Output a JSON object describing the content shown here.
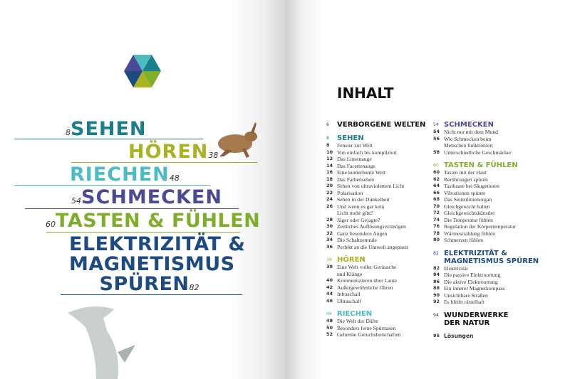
{
  "left_page": {
    "chapters": [
      {
        "title": "SEHEN",
        "page": "8",
        "color": "#1b7f8b"
      },
      {
        "title": "HÖREN",
        "page": "38",
        "color": "#a9b321"
      },
      {
        "title": "RIECHEN",
        "page": "48",
        "color": "#4bbcc2"
      },
      {
        "title": "SCHMECKEN",
        "page": "54",
        "color": "#4b4b93"
      },
      {
        "title": "TASTEN & FÜHLEN",
        "page": "60",
        "color": "#7fae2b"
      },
      {
        "title_lines": [
          "ELEKTRIZITÄT &",
          "MAGNETISMUS",
          "SPÜREN"
        ],
        "page": "82",
        "color": "#1d4a80"
      }
    ]
  },
  "toc": {
    "title": "INHALT",
    "col1": [
      {
        "type": "h",
        "num": "6",
        "text": "VERBORGENE WELTEN",
        "color": "#111"
      },
      {
        "type": "h",
        "num": "8",
        "text": "SEHEN",
        "color": "#1b7f8b"
      },
      {
        "num": "8",
        "text": "Fenster zur Welt"
      },
      {
        "num": "10",
        "text": "Von einfach bis kompliziert"
      },
      {
        "num": "12",
        "text": "Das Linsenauge"
      },
      {
        "num": "14",
        "text": "Das Facettenauge"
      },
      {
        "num": "16",
        "text": "Eine kunterbunte Welt"
      },
      {
        "num": "18",
        "text": "Das Farbensehen"
      },
      {
        "num": "20",
        "text": "Sehen von ultraviolettem Licht"
      },
      {
        "num": "22",
        "text": "Polarisation"
      },
      {
        "num": "24",
        "text": "Sehen in der Dunkelheit"
      },
      {
        "num": "26",
        "text": "Und wenn es gar kein"
      },
      {
        "num": "",
        "text": "Licht mehr gibt?"
      },
      {
        "num": "28",
        "text": "Jäger oder Gejagte?"
      },
      {
        "num": "30",
        "text": "Zeitliches Auflösungsvermögen"
      },
      {
        "num": "32",
        "text": "Ganz besondere Augen"
      },
      {
        "num": "34",
        "text": "Die Schaltzentrale"
      },
      {
        "num": "36",
        "text": "Perfekt an die Umwelt angepasst"
      },
      {
        "type": "h",
        "num": "38",
        "text": "HÖREN",
        "color": "#a9b321"
      },
      {
        "num": "38",
        "text": "Eine Welt voller Geräusche"
      },
      {
        "num": "",
        "text": "und Klänge"
      },
      {
        "num": "40",
        "text": "Kommunizieren über Laute"
      },
      {
        "num": "42",
        "text": "Außergewöhnliche Ohren"
      },
      {
        "num": "44",
        "text": "Infraschall"
      },
      {
        "num": "46",
        "text": "Ultraschall"
      },
      {
        "type": "h",
        "num": "48",
        "text": "RIECHEN",
        "color": "#4bbcc2"
      },
      {
        "num": "48",
        "text": "Die Welt der Düfte"
      },
      {
        "num": "50",
        "text": "Besonders feine Spürnasen"
      },
      {
        "num": "52",
        "text": "Geheime Geruchsbotschaften"
      }
    ],
    "col2": [
      {
        "type": "h",
        "num": "54",
        "text": "SCHMECKEN",
        "color": "#4b4b93"
      },
      {
        "num": "54",
        "text": "Nicht nur mit dem Mund"
      },
      {
        "num": "56",
        "text": "Wie Schmecken beim"
      },
      {
        "num": "",
        "text": "Menschen funktioniert"
      },
      {
        "num": "58",
        "text": "Unterschiedliche Geschmäcker"
      },
      {
        "type": "h",
        "num": "60",
        "text": "TASTEN & FÜHLEN",
        "color": "#7fae2b"
      },
      {
        "num": "60",
        "text": "Tasten mit der Haut"
      },
      {
        "num": "62",
        "text": "Berührungen spüren"
      },
      {
        "num": "64",
        "text": "Tasthaare bei Säugetieren"
      },
      {
        "num": "66",
        "text": "Vibrationen spüren"
      },
      {
        "num": "68",
        "text": "Das Seitenlinienorgan"
      },
      {
        "num": "70",
        "text": "Gleichgewicht halten"
      },
      {
        "num": "72",
        "text": "Gleichgewichtskünstler"
      },
      {
        "num": "74",
        "text": "Die Temperatur fühlen"
      },
      {
        "num": "76",
        "text": "Regulation der Körpertemperatur"
      },
      {
        "num": "78",
        "text": "Wärmestrahlung fühlen"
      },
      {
        "num": "80",
        "text": "Schmerzen fühlen"
      },
      {
        "type": "h",
        "num": "82",
        "text": "ELEKTRIZITÄT &",
        "text2": "MAGNETISMUS SPÜREN",
        "color": "#1d4a80"
      },
      {
        "num": "82",
        "text": "Elektrizität"
      },
      {
        "num": "84",
        "text": "Die passive Elektroortung"
      },
      {
        "num": "86",
        "text": "Die aktive Elektroortung"
      },
      {
        "num": "88",
        "text": "Ein innerer Magnetkompass"
      },
      {
        "num": "90",
        "text": "Unsichtbare Straßen"
      },
      {
        "num": "92",
        "text": "Es bleibt rätselhaft"
      },
      {
        "type": "h",
        "num": "94",
        "text": "WUNDERWERKE",
        "text2": "DER NATUR",
        "color": "#111"
      },
      {
        "type": "s",
        "num": "95",
        "text": "Lösungen"
      }
    ]
  }
}
